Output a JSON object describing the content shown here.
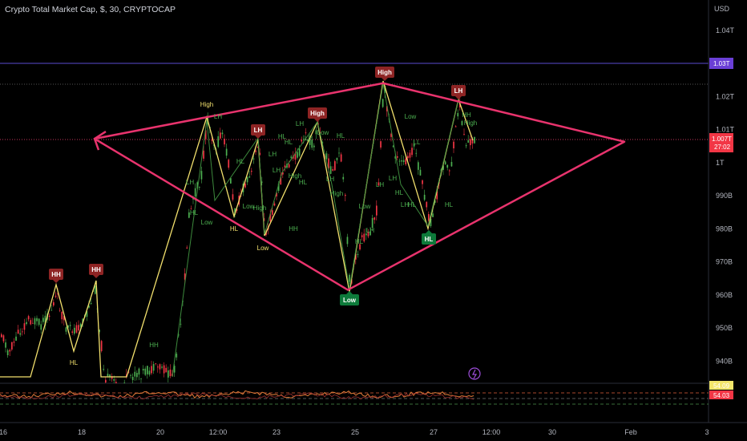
{
  "header": {
    "title": "Crypto Total Market Cap, $, 30, CRYPTOCAP"
  },
  "axis": {
    "currency_label": "USD"
  },
  "colors": {
    "background": "#000000",
    "pattern": "#e8336d",
    "zigzag": "#f2e06d",
    "bull": "#4caf50",
    "bear": "#f23645",
    "badge_bear": "#8e2424",
    "badge_bull": "#0d7a3a",
    "level_line": "#5a4bd0",
    "level_badge": "#6a3fd6",
    "price_badge": "#f23645",
    "osc_line": "#e07b39",
    "osc_badge_yellow": "#f2e66b",
    "osc_badge_red": "#f23645"
  },
  "chart_data": {
    "type": "candlestick",
    "title": "Crypto Total Market Cap, $, 30, CRYPTOCAP",
    "y_unit": "USD",
    "y_range_billions": [
      934,
      1046
    ],
    "y_tick_labels": [
      "1.04T",
      "1.03T",
      "1.02T",
      "1.01T",
      "1T",
      "990B",
      "980B",
      "970B",
      "960B",
      "950B",
      "940B"
    ],
    "x_tick_labels": [
      "16",
      "18",
      "20",
      "12:00",
      "23",
      "25",
      "27",
      "12:00",
      "30",
      "Feb",
      "3"
    ],
    "price_levels": {
      "horizontal_level": "1.03T",
      "current_price": "1.007T",
      "countdown": "27:02"
    },
    "pattern_vertices": [
      {
        "point": "left",
        "label_date": "~21–22",
        "value_b": 1007.2
      },
      {
        "point": "top",
        "label_date": "25",
        "value_b": 1024
      },
      {
        "point": "right",
        "label_date": "~Feb",
        "value_b": 1006.3
      },
      {
        "point": "bottom",
        "label_date": "25",
        "value_b": 961.5
      }
    ],
    "swing_badges": [
      {
        "label": "HH",
        "kind": "bear"
      },
      {
        "label": "HH",
        "kind": "bear"
      },
      {
        "label": "LH",
        "kind": "bear"
      },
      {
        "label": "High",
        "kind": "bear"
      },
      {
        "label": "High",
        "kind": "bear"
      },
      {
        "label": "LH",
        "kind": "bear"
      },
      {
        "label": "Low",
        "kind": "bull"
      },
      {
        "label": "HL",
        "kind": "bull"
      }
    ],
    "swing_text_labels": [
      {
        "label": "HL",
        "color": "yellow"
      },
      {
        "label": "High",
        "color": "yellow"
      },
      {
        "label": "HL",
        "color": "yellow"
      },
      {
        "label": "Low",
        "color": "yellow"
      },
      {
        "label": "Low",
        "color": "green"
      },
      {
        "label": "HH",
        "color": "green"
      },
      {
        "label": "HL",
        "color": "green"
      },
      {
        "label": "LH",
        "color": "green"
      },
      {
        "label": "LH",
        "color": "green"
      },
      {
        "label": "HL",
        "color": "green"
      },
      {
        "label": "Low",
        "color": "green"
      },
      {
        "label": "HL",
        "color": "green"
      },
      {
        "label": "HH",
        "color": "green"
      },
      {
        "label": "High",
        "color": "green"
      },
      {
        "label": "LH",
        "color": "green"
      },
      {
        "label": "LH",
        "color": "green"
      },
      {
        "label": "HL",
        "color": "green"
      },
      {
        "label": "LH",
        "color": "green"
      },
      {
        "label": "High",
        "color": "green"
      },
      {
        "label": "LH",
        "color": "green"
      },
      {
        "label": "HL",
        "color": "green"
      },
      {
        "label": "Low",
        "color": "green"
      },
      {
        "label": "LH",
        "color": "green"
      },
      {
        "label": "High",
        "color": "green"
      },
      {
        "label": "HL",
        "color": "green"
      },
      {
        "label": "Low",
        "color": "green"
      },
      {
        "label": "HL",
        "color": "green"
      },
      {
        "label": "LH",
        "color": "green"
      },
      {
        "label": "LH",
        "color": "green"
      },
      {
        "label": "HL",
        "color": "green"
      },
      {
        "label": "Low",
        "color": "green"
      },
      {
        "label": "LL",
        "color": "green"
      },
      {
        "label": "LH",
        "color": "green"
      },
      {
        "label": "LH",
        "color": "green"
      },
      {
        "label": "HL",
        "color": "green"
      },
      {
        "label": "HL",
        "color": "green"
      },
      {
        "label": "HH",
        "color": "green"
      },
      {
        "label": "High",
        "color": "green"
      }
    ],
    "oscillator": {
      "value_labels": [
        "54.09",
        "54.03"
      ]
    }
  }
}
